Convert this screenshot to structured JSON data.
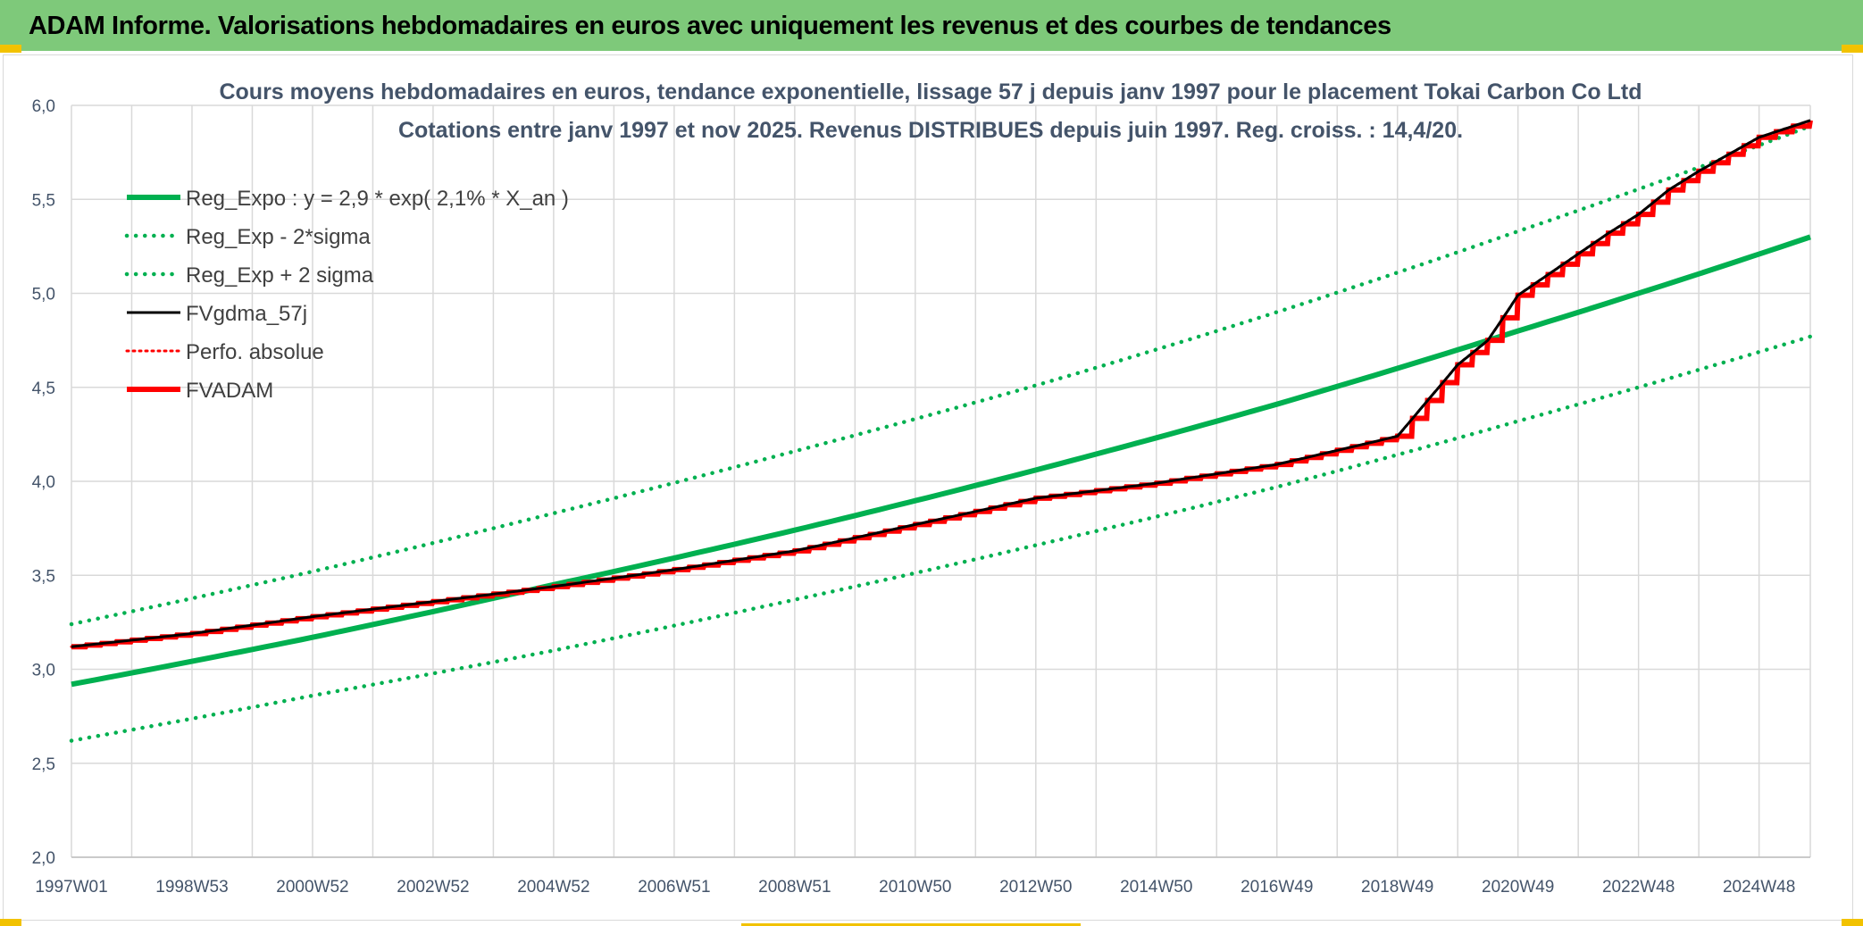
{
  "header": {
    "title": "ADAM Informe. Valorisations hebdomadaires en euros avec uniquement les revenus et des courbes de tendances"
  },
  "colors": {
    "header_green": "#7ec97a",
    "accent_yellow": "#f2c200",
    "trend_green": "#00b050",
    "adam_red": "#ff0000",
    "gdma_black": "#000000",
    "grid": "#d9d9d9",
    "text": "#44546a"
  },
  "chart_data": {
    "type": "line",
    "title": "Cours moyens hebdomadaires en euros, tendance exponentielle, lissage 57 j depuis janv 1997 pour le placement Tokai Carbon Co Ltd",
    "subtitle": "Cotations entre janv 1997 et nov 2025. Revenus DISTRIBUES depuis juin 1997. Reg. croiss. : 14,4/20.",
    "xlabel": "",
    "ylabel": "",
    "x_range": [
      1997.0,
      2025.85
    ],
    "ylim": [
      2.0,
      6.0
    ],
    "y_ticks": [
      "2,0",
      "2,5",
      "3,0",
      "3,5",
      "4,0",
      "4,5",
      "5,0",
      "5,5",
      "6,0"
    ],
    "y_tick_values": [
      2.0,
      2.5,
      3.0,
      3.5,
      4.0,
      4.5,
      5.0,
      5.5,
      6.0
    ],
    "x_ticks": [
      "1997W01",
      "1998W53",
      "2000W52",
      "2002W52",
      "2004W52",
      "2006W51",
      "2008W51",
      "2010W50",
      "2012W50",
      "2014W50",
      "2016W49",
      "2018W49",
      "2020W49",
      "2022W48",
      "2024W48"
    ],
    "x_tick_values": [
      1997.0,
      1999.0,
      2001.0,
      2003.0,
      2005.0,
      2007.0,
      2009.0,
      2011.0,
      2013.0,
      2015.0,
      2017.0,
      2019.0,
      2021.0,
      2023.0,
      2025.0
    ],
    "grid": true,
    "legend_position": "top-left",
    "series": [
      {
        "name": "Reg_Expo : y = 2,9 * exp( 2,1% *  X_an )",
        "style": "solid",
        "color": "#00b050",
        "x": [
          1997.0,
          2001.0,
          2005.0,
          2009.0,
          2013.0,
          2017.0,
          2021.0,
          2025.85
        ],
        "y": [
          2.92,
          3.17,
          3.45,
          3.74,
          4.06,
          4.41,
          4.8,
          5.3
        ]
      },
      {
        "name": "Reg_Exp - 2*sigma",
        "style": "dotted",
        "color": "#00b050",
        "x": [
          1997.0,
          2001.0,
          2005.0,
          2009.0,
          2013.0,
          2017.0,
          2021.0,
          2025.85
        ],
        "y": [
          2.62,
          2.86,
          3.1,
          3.37,
          3.66,
          3.97,
          4.32,
          4.77
        ]
      },
      {
        "name": "Reg_Exp + 2 sigma",
        "style": "dotted",
        "color": "#00b050",
        "x": [
          1997.0,
          2001.0,
          2005.0,
          2009.0,
          2013.0,
          2017.0,
          2021.0,
          2025.85
        ],
        "y": [
          3.24,
          3.52,
          3.83,
          4.16,
          4.51,
          4.9,
          5.33,
          5.89
        ]
      },
      {
        "name": "FVgdma_57j",
        "style": "solid-thin",
        "color": "#000000",
        "x": [
          1997.0,
          1999.0,
          2001.0,
          2003.0,
          2005.0,
          2007.0,
          2009.0,
          2011.0,
          2013.0,
          2015.0,
          2017.0,
          2019.0,
          2019.5,
          2020.0,
          2020.5,
          2021.0,
          2021.5,
          2022.0,
          2022.5,
          2023.0,
          2023.5,
          2024.0,
          2024.5,
          2025.0,
          2025.85
        ],
        "y": [
          3.12,
          3.19,
          3.28,
          3.36,
          3.44,
          3.53,
          3.63,
          3.77,
          3.91,
          3.99,
          4.09,
          4.24,
          4.43,
          4.62,
          4.75,
          4.99,
          5.1,
          5.21,
          5.32,
          5.42,
          5.55,
          5.65,
          5.74,
          5.83,
          5.92
        ]
      },
      {
        "name": "Perfo. absolue",
        "style": "dotted",
        "color": "#ff0000",
        "x": [
          1997.0,
          1999.0,
          2001.0,
          2003.0,
          2005.0,
          2007.0,
          2009.0,
          2011.0,
          2013.0,
          2015.0,
          2017.0,
          2019.0,
          2019.5,
          2020.0,
          2020.5,
          2021.0,
          2021.5,
          2022.0,
          2022.5,
          2023.0,
          2023.5,
          2024.0,
          2024.5,
          2025.0,
          2025.85
        ],
        "y": [
          3.12,
          3.19,
          3.28,
          3.36,
          3.44,
          3.53,
          3.63,
          3.77,
          3.91,
          3.99,
          4.09,
          4.24,
          4.43,
          4.62,
          4.75,
          4.99,
          5.1,
          5.21,
          5.32,
          5.42,
          5.55,
          5.65,
          5.74,
          5.83,
          5.92
        ]
      },
      {
        "name": "FVADAM",
        "style": "step",
        "color": "#ff0000",
        "x": [
          1997.0,
          1999.0,
          2001.0,
          2003.0,
          2005.0,
          2007.0,
          2009.0,
          2011.0,
          2013.0,
          2015.0,
          2017.0,
          2019.0,
          2019.5,
          2020.0,
          2020.5,
          2021.0,
          2021.5,
          2022.0,
          2022.5,
          2023.0,
          2023.5,
          2024.0,
          2024.5,
          2025.0,
          2025.85
        ],
        "y": [
          3.12,
          3.19,
          3.28,
          3.36,
          3.44,
          3.53,
          3.63,
          3.77,
          3.91,
          3.99,
          4.09,
          4.24,
          4.43,
          4.62,
          4.75,
          4.99,
          5.1,
          5.21,
          5.32,
          5.42,
          5.55,
          5.65,
          5.74,
          5.83,
          5.92
        ]
      }
    ]
  }
}
